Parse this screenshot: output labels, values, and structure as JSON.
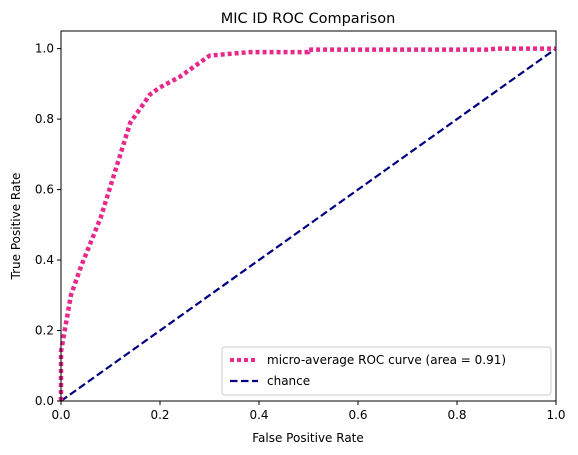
{
  "chart_data": {
    "type": "line",
    "title": "MIC ID ROC Comparison",
    "xlabel": "False Positive Rate",
    "ylabel": "True Positive Rate",
    "xlim": [
      0.0,
      1.0
    ],
    "ylim": [
      0.0,
      1.05
    ],
    "x_ticks": [
      0.0,
      0.2,
      0.4,
      0.6,
      0.8,
      1.0
    ],
    "y_ticks": [
      0.0,
      0.2,
      0.4,
      0.6,
      0.8,
      1.0
    ],
    "x_tick_labels": [
      "0.0",
      "0.2",
      "0.4",
      "0.6",
      "0.8",
      "1.0"
    ],
    "y_tick_labels": [
      "0.0",
      "0.2",
      "0.4",
      "0.6",
      "0.8",
      "1.0"
    ],
    "grid": false,
    "legend_position": "lower-right",
    "series": [
      {
        "name": "micro-average ROC curve (area = 0.91)",
        "color": "#e7298a",
        "style": "dotted",
        "x": [
          0.0,
          0.0,
          0.01,
          0.02,
          0.04,
          0.06,
          0.08,
          0.1,
          0.12,
          0.14,
          0.16,
          0.18,
          0.2,
          0.24,
          0.28,
          0.3,
          0.34,
          0.38,
          0.42,
          0.5,
          0.5,
          0.6,
          0.7,
          0.86,
          0.88,
          1.0
        ],
        "y": [
          0.0,
          0.14,
          0.22,
          0.3,
          0.38,
          0.45,
          0.52,
          0.61,
          0.7,
          0.79,
          0.83,
          0.87,
          0.89,
          0.92,
          0.96,
          0.98,
          0.985,
          0.99,
          0.99,
          0.99,
          0.997,
          0.997,
          0.997,
          0.997,
          1.0,
          1.0
        ]
      },
      {
        "name": "chance",
        "color": "#000080",
        "style": "dashed",
        "x": [
          0.0,
          1.0
        ],
        "y": [
          0.0,
          1.0
        ]
      }
    ]
  }
}
